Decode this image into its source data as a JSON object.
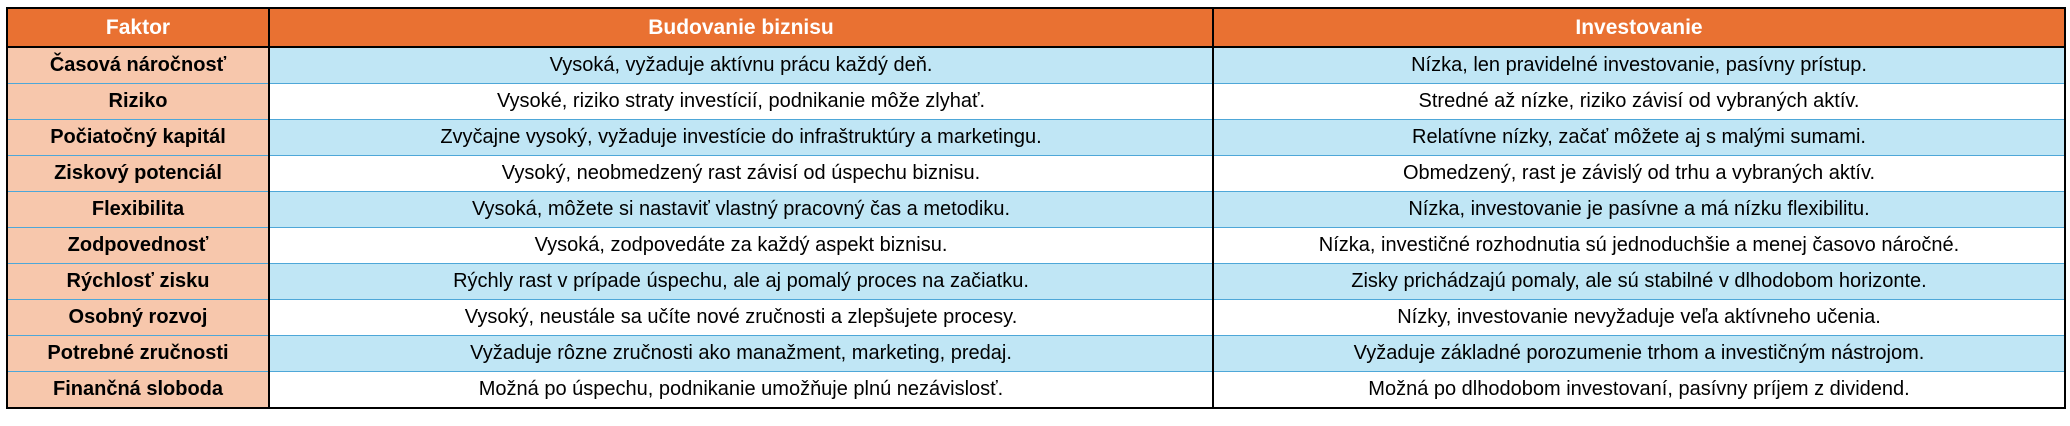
{
  "headers": [
    "Faktor",
    "Budovanie biznisu",
    "Investovanie"
  ],
  "rows": [
    [
      "Časová náročnosť",
      "Vysoká, vyžaduje aktívnu prácu každý deň.",
      "Nízka, len pravidelné investovanie, pasívny prístup."
    ],
    [
      "Riziko",
      "Vysoké, riziko straty investícií, podnikanie môže zlyhať.",
      "Stredné až nízke, riziko závisí od vybraných aktív."
    ],
    [
      "Počiatočný kapitál",
      "Zvyčajne vysoký, vyžaduje investície do infraštruktúry a marketingu.",
      "Relatívne nízky, začať môžete aj s malými sumami."
    ],
    [
      "Ziskový potenciál",
      "Vysoký, neobmedzený rast závisí od úspechu biznisu.",
      "Obmedzený, rast je závislý od trhu a vybraných aktív."
    ],
    [
      "Flexibilita",
      "Vysoká, môžete si nastaviť vlastný pracovný čas a metodiku.",
      "Nízka, investovanie je pasívne a má nízku flexibilitu."
    ],
    [
      "Zodpovednosť",
      "Vysoká, zodpovedáte za každý aspekt biznisu.",
      "Nízka, investičné rozhodnutia sú jednoduchšie a menej časovo náročné."
    ],
    [
      "Rýchlosť zisku",
      "Rýchly rast v prípade úspechu, ale aj pomalý proces na začiatku.",
      "Zisky prichádzajú pomaly, ale sú stabilné v dlhodobom horizonte."
    ],
    [
      "Osobný rozvoj",
      "Vysoký, neustále sa učíte nové zručnosti a zlepšujete procesy.",
      "Nízky, investovanie nevyžaduje veľa aktívneho učenia."
    ],
    [
      "Potrebné zručnosti",
      "Vyžaduje rôzne zručnosti ako manažment, marketing, predaj.",
      "Vyžaduje základné porozumenie trhom a investičným nástrojom."
    ],
    [
      "Finančná sloboda",
      "Možná po úspechu, podnikanie umožňuje plnú nezávislosť.",
      "Možná po dlhodobom investovaní, pasívny príjem z dividend."
    ]
  ],
  "colors": {
    "header": "#E97132",
    "factor_column": "#F7C7AC",
    "band": "#C0E6F5",
    "row_line": "#4EA7D8"
  }
}
